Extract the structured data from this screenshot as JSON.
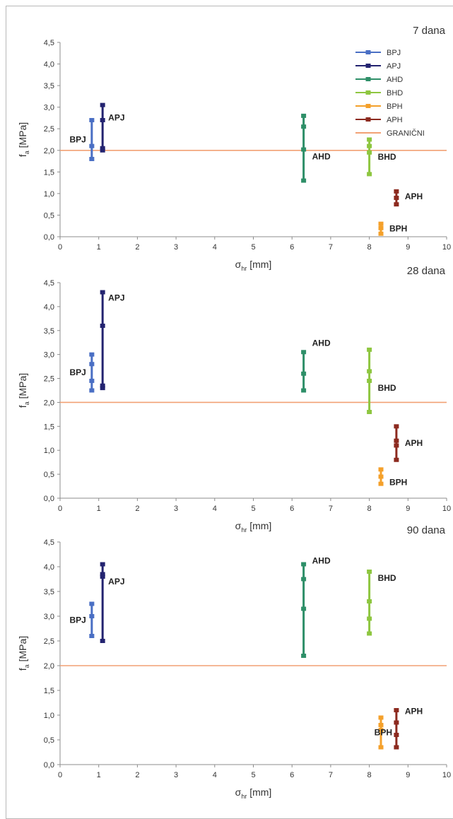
{
  "chart_data": [
    {
      "type": "errorbar",
      "title": "7 dana",
      "xlabel": "σ",
      "xlabel_sub": "hr",
      "xlabel_unit": " [mm]",
      "ylabel": "f",
      "ylabel_sub": "a",
      "ylabel_unit": " [MPa]",
      "xlim": [
        0,
        10
      ],
      "ylim": [
        0,
        4.5
      ],
      "xticks": [
        "0",
        "1",
        "2",
        "3",
        "4",
        "5",
        "6",
        "7",
        "8",
        "9",
        "10"
      ],
      "yticks": [
        "0,0",
        "0,5",
        "1,0",
        "1,5",
        "2,0",
        "2,5",
        "3,0",
        "3,5",
        "4,0",
        "4,5"
      ],
      "limit_line": 2.0,
      "legend_position": "top-right",
      "series": [
        {
          "name": "BPJ",
          "label": "BPJ",
          "x": 0.82,
          "min": 1.8,
          "max": 2.7,
          "points": [
            2.1
          ]
        },
        {
          "name": "APJ",
          "label": "APJ",
          "x": 1.1,
          "min": 2.0,
          "max": 3.05,
          "points": [
            2.05,
            2.7
          ]
        },
        {
          "name": "AHD",
          "label": "AHD",
          "x": 6.3,
          "min": 1.3,
          "max": 2.8,
          "points": [
            2.02,
            2.55
          ]
        },
        {
          "name": "BHD",
          "label": "BHD",
          "x": 8.0,
          "min": 1.45,
          "max": 2.25,
          "points": [
            1.95,
            2.1
          ]
        },
        {
          "name": "BPH",
          "label": "BPH",
          "x": 8.3,
          "min": 0.07,
          "max": 0.3,
          "points": [
            0.2
          ]
        },
        {
          "name": "APH",
          "label": "APH",
          "x": 8.7,
          "min": 0.75,
          "max": 1.05,
          "points": [
            0.9
          ]
        }
      ],
      "limit_name": "GRANIČNI"
    },
    {
      "type": "errorbar",
      "title": "28 dana",
      "xlabel": "σ",
      "xlabel_sub": "hr",
      "xlabel_unit": " [mm]",
      "ylabel": "f",
      "ylabel_sub": "a",
      "ylabel_unit": " [MPa]",
      "xlim": [
        0,
        10
      ],
      "ylim": [
        0,
        4.5
      ],
      "xticks": [
        "0",
        "1",
        "2",
        "3",
        "4",
        "5",
        "6",
        "7",
        "8",
        "9",
        "10"
      ],
      "yticks": [
        "0,0",
        "0,5",
        "1,0",
        "1,5",
        "2,0",
        "2,5",
        "3,0",
        "3,5",
        "4,0",
        "4,5"
      ],
      "limit_line": 2.0,
      "series": [
        {
          "name": "BPJ",
          "label": "BPJ",
          "x": 0.82,
          "min": 2.25,
          "max": 3.0,
          "points": [
            2.45,
            2.8
          ]
        },
        {
          "name": "APJ",
          "label": "APJ",
          "x": 1.1,
          "min": 2.3,
          "max": 4.3,
          "points": [
            2.35,
            3.6
          ]
        },
        {
          "name": "AHD",
          "label": "AHD",
          "x": 6.3,
          "min": 2.25,
          "max": 3.05,
          "points": [
            2.6
          ]
        },
        {
          "name": "BHD",
          "label": "BHD",
          "x": 8.0,
          "min": 1.8,
          "max": 3.1,
          "points": [
            2.45,
            2.65
          ]
        },
        {
          "name": "BPH",
          "label": "BPH",
          "x": 8.3,
          "min": 0.3,
          "max": 0.6,
          "points": [
            0.45
          ]
        },
        {
          "name": "APH",
          "label": "APH",
          "x": 8.7,
          "min": 0.8,
          "max": 1.5,
          "points": [
            1.1,
            1.2
          ]
        }
      ]
    },
    {
      "type": "errorbar",
      "title": "90 dana",
      "xlabel": "σ",
      "xlabel_sub": "hr",
      "xlabel_unit": " [mm]",
      "ylabel": "f",
      "ylabel_sub": "a",
      "ylabel_unit": " [MPa]",
      "xlim": [
        0,
        10
      ],
      "ylim": [
        0,
        4.5
      ],
      "xticks": [
        "0",
        "1",
        "2",
        "3",
        "4",
        "5",
        "6",
        "7",
        "8",
        "9",
        "10"
      ],
      "yticks": [
        "0,0",
        "0,5",
        "1,0",
        "1,5",
        "2,0",
        "2,5",
        "3,0",
        "3,5",
        "4,0",
        "4,5"
      ],
      "limit_line": 2.0,
      "series": [
        {
          "name": "BPJ",
          "label": "BPJ",
          "x": 0.82,
          "min": 2.6,
          "max": 3.25,
          "points": [
            3.0
          ]
        },
        {
          "name": "APJ",
          "label": "APJ",
          "x": 1.1,
          "min": 2.5,
          "max": 4.05,
          "points": [
            3.8,
            3.85
          ]
        },
        {
          "name": "AHD",
          "label": "AHD",
          "x": 6.3,
          "min": 2.2,
          "max": 4.05,
          "points": [
            3.15,
            3.75
          ]
        },
        {
          "name": "BHD",
          "label": "BHD",
          "x": 8.0,
          "min": 2.65,
          "max": 3.9,
          "points": [
            2.95,
            3.3
          ]
        },
        {
          "name": "BPH",
          "label": "BPH",
          "x": 8.3,
          "min": 0.35,
          "max": 0.95,
          "points": [
            0.7,
            0.8
          ]
        },
        {
          "name": "APH",
          "label": "APH",
          "x": 8.7,
          "min": 0.35,
          "max": 1.1,
          "points": [
            0.6,
            0.85
          ]
        }
      ]
    }
  ],
  "colors": {
    "BPJ": "#4a6fc4",
    "APJ": "#232370",
    "AHD": "#2e8f68",
    "BHD": "#8ec640",
    "BPH": "#f4a02a",
    "APH": "#8c2a1f",
    "GRANIČNI": "#f2a174"
  }
}
